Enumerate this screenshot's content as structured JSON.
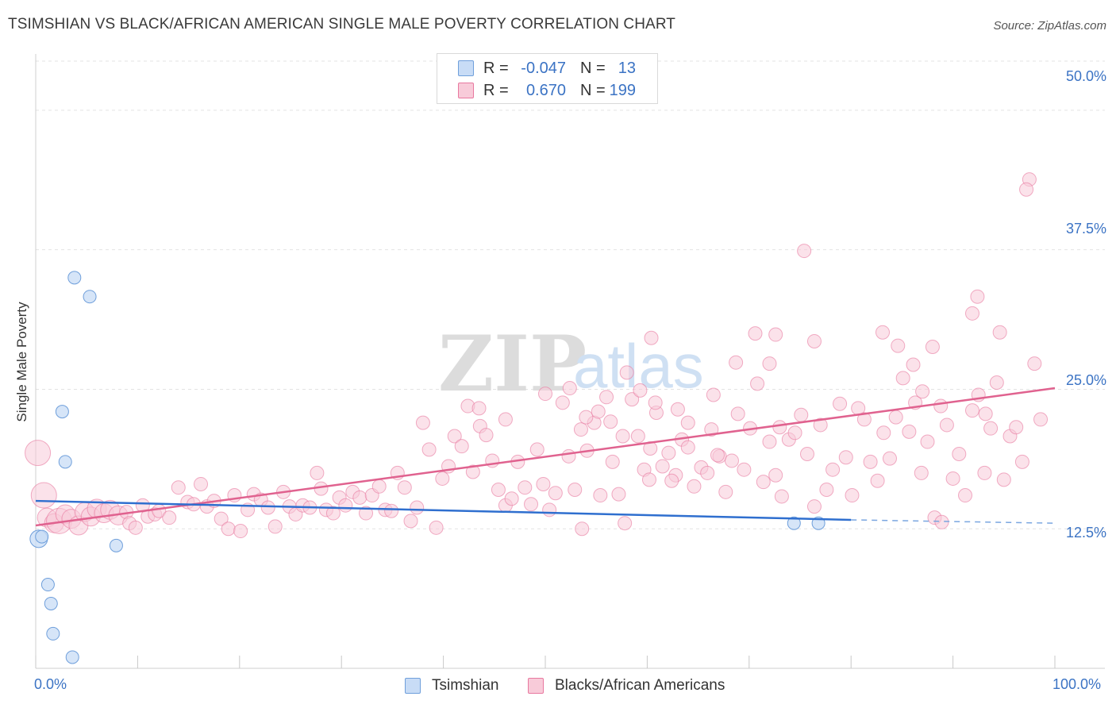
{
  "title": "TSIMSHIAN VS BLACK/AFRICAN AMERICAN SINGLE MALE POVERTY CORRELATION CHART",
  "source": "Source: ZipAtlas.com",
  "watermark": {
    "zip": "ZIP",
    "atlas": "atlas"
  },
  "legend": {
    "rows": [
      {
        "r_label": "R =",
        "r_value": "-0.047",
        "n_label": "N =",
        "n_value": "13"
      },
      {
        "r_label": "R =",
        "r_value": "0.670",
        "n_label": "N =",
        "n_value": "199"
      }
    ]
  },
  "chart_data": {
    "type": "scatter",
    "title": "TSIMSHIAN VS BLACK/AFRICAN AMERICAN SINGLE MALE POVERTY CORRELATION CHART",
    "xlabel": "",
    "ylabel": "Single Male Poverty",
    "xlim": [
      0,
      100
    ],
    "ylim": [
      0,
      50
    ],
    "x_tick_labels": [
      "0.0%",
      "100.0%"
    ],
    "y_ticks": [
      12.5,
      25.0,
      37.5,
      50.0
    ],
    "y_tick_labels": [
      "12.5%",
      "25.0%",
      "37.5%",
      "50.0%"
    ],
    "grid": true,
    "colors": {
      "tsimshian": "#6f9fdb",
      "tsimshian_fill": "#c8dcf6",
      "black": "#e8789f",
      "black_fill": "#f8cbd9",
      "tick": "#3b73c4"
    },
    "series": [
      {
        "name": "Tsimshian",
        "r": -0.047,
        "n": 13,
        "trend": {
          "x0": 0,
          "y0": 15.0,
          "x1": 80,
          "y1": 13.3,
          "dash_x1": 100,
          "dash_y1": 13.0
        },
        "points": [
          [
            0.3,
            11.6,
            2
          ],
          [
            0.6,
            11.8,
            1
          ],
          [
            1.2,
            7.5,
            1
          ],
          [
            1.5,
            5.8,
            1
          ],
          [
            1.7,
            3.1,
            1
          ],
          [
            2.6,
            23.0,
            1
          ],
          [
            2.9,
            18.5,
            1
          ],
          [
            3.6,
            1.0,
            1
          ],
          [
            3.8,
            35.0,
            1
          ],
          [
            5.3,
            33.3,
            1
          ],
          [
            7.9,
            11.0,
            1
          ],
          [
            74.4,
            13.0,
            1
          ],
          [
            76.8,
            13.0,
            1
          ]
        ]
      },
      {
        "name": "Blacks/African Americans",
        "r": 0.67,
        "n": 199,
        "trend": {
          "x0": 0,
          "y0": 12.8,
          "x1": 100,
          "y1": 25.1
        },
        "points": [
          [
            0.2,
            19.3,
            3
          ],
          [
            0.8,
            15.5,
            3
          ],
          [
            1.1,
            13.5,
            2
          ],
          [
            1.8,
            13.0,
            2
          ],
          [
            2.3,
            13.2,
            3
          ],
          [
            2.9,
            13.8,
            2
          ],
          [
            3.5,
            13.4,
            2
          ],
          [
            4.2,
            12.8,
            2
          ],
          [
            4.8,
            14.0,
            2
          ],
          [
            5.4,
            13.6,
            2
          ],
          [
            6.0,
            14.3,
            2
          ],
          [
            6.7,
            13.9,
            2
          ],
          [
            7.3,
            14.2,
            2
          ],
          [
            8.1,
            13.7,
            2
          ],
          [
            8.9,
            14.0,
            1
          ],
          [
            9.2,
            13.0,
            1
          ],
          [
            9.8,
            12.6,
            1
          ],
          [
            10.5,
            14.6,
            1
          ],
          [
            11.0,
            13.6,
            1
          ],
          [
            11.7,
            13.8,
            1
          ],
          [
            12.1,
            14.1,
            1
          ],
          [
            13.1,
            13.5,
            1
          ],
          [
            14.0,
            16.2,
            1
          ],
          [
            14.9,
            14.9,
            1
          ],
          [
            15.5,
            14.7,
            1
          ],
          [
            16.2,
            16.5,
            1
          ],
          [
            16.8,
            14.5,
            1
          ],
          [
            17.5,
            15.0,
            1
          ],
          [
            18.2,
            13.4,
            1
          ],
          [
            18.9,
            12.5,
            1
          ],
          [
            19.5,
            15.5,
            1
          ],
          [
            20.1,
            12.3,
            1
          ],
          [
            20.8,
            14.2,
            1
          ],
          [
            21.4,
            15.6,
            1
          ],
          [
            22.1,
            15.1,
            1
          ],
          [
            22.8,
            14.4,
            1
          ],
          [
            23.5,
            12.7,
            1
          ],
          [
            24.3,
            15.8,
            1
          ],
          [
            24.9,
            14.5,
            1
          ],
          [
            25.5,
            13.8,
            1
          ],
          [
            26.2,
            14.6,
            1
          ],
          [
            26.9,
            14.4,
            1
          ],
          [
            27.6,
            17.5,
            1
          ],
          [
            28.0,
            16.1,
            1
          ],
          [
            28.5,
            14.2,
            1
          ],
          [
            29.2,
            13.9,
            1
          ],
          [
            29.8,
            15.3,
            1
          ],
          [
            30.4,
            14.6,
            1
          ],
          [
            31.1,
            15.8,
            1
          ],
          [
            31.8,
            15.3,
            1
          ],
          [
            32.4,
            13.9,
            1
          ],
          [
            33.0,
            15.5,
            1
          ],
          [
            33.7,
            16.3,
            1
          ],
          [
            34.3,
            14.2,
            1
          ],
          [
            34.9,
            14.1,
            1
          ],
          [
            35.5,
            17.5,
            1
          ],
          [
            36.2,
            16.2,
            1
          ],
          [
            36.8,
            13.2,
            1
          ],
          [
            37.4,
            14.4,
            1
          ],
          [
            38.0,
            22.0,
            1
          ],
          [
            38.6,
            19.6,
            1
          ],
          [
            39.3,
            12.6,
            1
          ],
          [
            39.9,
            17.0,
            1
          ],
          [
            40.5,
            18.1,
            1
          ],
          [
            41.1,
            20.8,
            1
          ],
          [
            41.8,
            19.9,
            1
          ],
          [
            42.4,
            23.5,
            1
          ],
          [
            42.9,
            17.6,
            1
          ],
          [
            43.6,
            21.7,
            1
          ],
          [
            44.2,
            20.9,
            1
          ],
          [
            44.8,
            18.6,
            1
          ],
          [
            45.4,
            16.0,
            1
          ],
          [
            46.1,
            14.6,
            1
          ],
          [
            46.7,
            15.2,
            1
          ],
          [
            47.3,
            18.5,
            1
          ],
          [
            48.0,
            16.2,
            1
          ],
          [
            48.6,
            14.7,
            1
          ],
          [
            49.2,
            19.6,
            1
          ],
          [
            49.8,
            16.5,
            1
          ],
          [
            50.4,
            14.2,
            1
          ],
          [
            51.0,
            15.7,
            1
          ],
          [
            51.7,
            23.8,
            1
          ],
          [
            52.3,
            19.0,
            1
          ],
          [
            52.9,
            16.0,
            1
          ],
          [
            53.5,
            21.4,
            1
          ],
          [
            54.1,
            19.5,
            1
          ],
          [
            54.8,
            22.0,
            1
          ],
          [
            55.4,
            15.5,
            1
          ],
          [
            56.0,
            24.3,
            1
          ],
          [
            56.6,
            18.5,
            1
          ],
          [
            57.2,
            15.6,
            1
          ],
          [
            57.8,
            13.0,
            1
          ],
          [
            58.5,
            24.1,
            1
          ],
          [
            59.1,
            20.8,
            1
          ],
          [
            59.7,
            17.8,
            1
          ],
          [
            60.3,
            19.7,
            1
          ],
          [
            60.9,
            22.9,
            1
          ],
          [
            61.5,
            18.1,
            1
          ],
          [
            62.1,
            19.3,
            1
          ],
          [
            62.8,
            17.3,
            1
          ],
          [
            63.4,
            20.5,
            1
          ],
          [
            64.0,
            22.0,
            1
          ],
          [
            64.6,
            16.3,
            1
          ],
          [
            65.3,
            18.0,
            1
          ],
          [
            65.9,
            17.5,
            1
          ],
          [
            66.5,
            24.5,
            1
          ],
          [
            67.1,
            19.0,
            1
          ],
          [
            67.7,
            15.8,
            1
          ],
          [
            68.3,
            18.6,
            1
          ],
          [
            68.9,
            22.8,
            1
          ],
          [
            69.5,
            17.8,
            1
          ],
          [
            70.1,
            21.5,
            1
          ],
          [
            70.8,
            25.5,
            1
          ],
          [
            71.4,
            16.7,
            1
          ],
          [
            72.0,
            20.3,
            1
          ],
          [
            72.6,
            17.3,
            1
          ],
          [
            73.2,
            15.4,
            1
          ],
          [
            73.9,
            20.5,
            1
          ],
          [
            74.5,
            21.1,
            1
          ],
          [
            75.1,
            22.7,
            1
          ],
          [
            75.7,
            19.2,
            1
          ],
          [
            76.4,
            14.5,
            1
          ],
          [
            77.0,
            21.8,
            1
          ],
          [
            77.6,
            16.0,
            1
          ],
          [
            78.2,
            17.8,
            1
          ],
          [
            78.9,
            23.7,
            1
          ],
          [
            79.5,
            18.9,
            1
          ],
          [
            80.1,
            15.5,
            1
          ],
          [
            80.7,
            23.3,
            1
          ],
          [
            81.3,
            22.3,
            1
          ],
          [
            81.9,
            18.5,
            1
          ],
          [
            82.6,
            16.8,
            1
          ],
          [
            83.2,
            21.1,
            1
          ],
          [
            83.8,
            18.8,
            1
          ],
          [
            84.4,
            22.5,
            1
          ],
          [
            85.1,
            26.0,
            1
          ],
          [
            85.7,
            21.2,
            1
          ],
          [
            86.3,
            23.8,
            1
          ],
          [
            86.9,
            17.5,
            1
          ],
          [
            87.5,
            20.3,
            1
          ],
          [
            88.2,
            13.5,
            1
          ],
          [
            88.8,
            23.5,
            1
          ],
          [
            89.4,
            21.8,
            1
          ],
          [
            90.0,
            17.0,
            1
          ],
          [
            90.6,
            19.2,
            1
          ],
          [
            91.2,
            15.5,
            1
          ],
          [
            91.9,
            23.1,
            1
          ],
          [
            92.5,
            24.5,
            1
          ],
          [
            93.1,
            17.5,
            1
          ],
          [
            93.7,
            21.5,
            1
          ],
          [
            94.3,
            25.6,
            1
          ],
          [
            95.0,
            16.9,
            1
          ],
          [
            95.6,
            20.8,
            1
          ],
          [
            96.2,
            21.6,
            1
          ],
          [
            96.8,
            18.5,
            1
          ],
          [
            97.5,
            43.8,
            1
          ],
          [
            97.2,
            42.9,
            1
          ],
          [
            75.4,
            37.4,
            1
          ],
          [
            92.4,
            33.3,
            1
          ],
          [
            91.9,
            31.8,
            1
          ],
          [
            94.6,
            30.1,
            1
          ],
          [
            83.1,
            30.1,
            1
          ],
          [
            84.6,
            28.9,
            1
          ],
          [
            88.0,
            28.8,
            1
          ],
          [
            76.4,
            29.3,
            1
          ],
          [
            70.6,
            30.0,
            1
          ],
          [
            72.6,
            29.9,
            1
          ],
          [
            60.4,
            29.6,
            1
          ],
          [
            68.7,
            27.4,
            1
          ],
          [
            72.0,
            27.3,
            1
          ],
          [
            58.0,
            26.5,
            1
          ],
          [
            59.3,
            24.9,
            1
          ],
          [
            60.8,
            23.8,
            1
          ],
          [
            86.1,
            27.2,
            1
          ],
          [
            87.0,
            24.8,
            1
          ],
          [
            98.0,
            27.3,
            1
          ],
          [
            98.6,
            22.3,
            1
          ],
          [
            93.2,
            22.8,
            1
          ],
          [
            63.0,
            23.2,
            1
          ],
          [
            66.3,
            21.4,
            1
          ],
          [
            88.9,
            13.1,
            1
          ],
          [
            53.6,
            12.5,
            1
          ],
          [
            46.1,
            22.3,
            1
          ],
          [
            50.0,
            24.6,
            1
          ],
          [
            43.5,
            23.3,
            1
          ],
          [
            54.0,
            22.5,
            1
          ],
          [
            52.4,
            25.1,
            1
          ],
          [
            55.2,
            23.0,
            1
          ],
          [
            56.4,
            22.1,
            1
          ],
          [
            57.6,
            20.8,
            1
          ],
          [
            60.2,
            16.9,
            1
          ],
          [
            62.4,
            16.8,
            1
          ],
          [
            64.0,
            19.8,
            1
          ],
          [
            66.9,
            19.1,
            1
          ],
          [
            73.0,
            21.6,
            1
          ]
        ]
      }
    ]
  },
  "bottom_legend": [
    {
      "label": "Tsimshian"
    },
    {
      "label": "Blacks/African Americans"
    }
  ]
}
